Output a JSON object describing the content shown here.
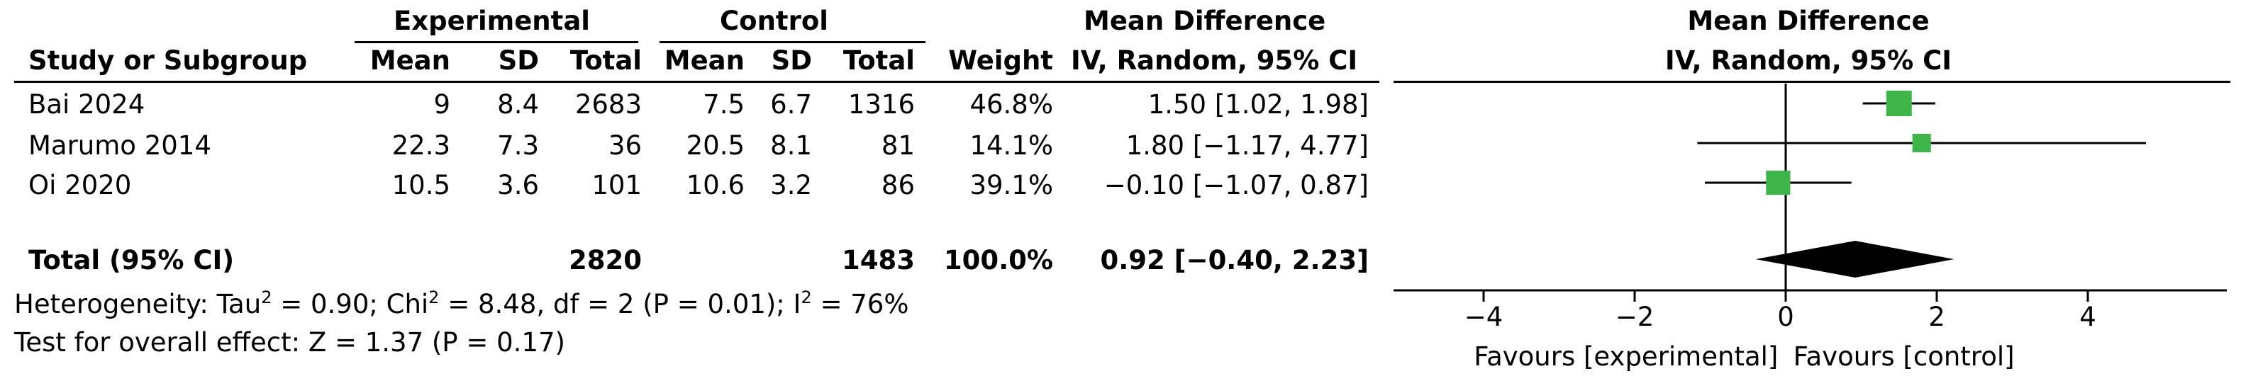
{
  "headers": {
    "experimental": "Experimental",
    "control": "Control",
    "md_top": "Mean Difference",
    "study": "Study or Subgroup",
    "mean": "Mean",
    "sd": "SD",
    "total": "Total",
    "weight": "Weight",
    "md_method": "IV, Random, 95% CI",
    "plot_top": "Mean Difference",
    "plot_method": "IV, Random, 95% CI"
  },
  "studies": [
    {
      "name": "Bai 2024",
      "e_mean": "9",
      "e_sd": "8.4",
      "e_total": "2683",
      "c_mean": "7.5",
      "c_sd": "6.7",
      "c_total": "1316",
      "weight": "46.8%",
      "ci": "1.50 [1.02, 1.98]"
    },
    {
      "name": "Marumo 2014",
      "e_mean": "22.3",
      "e_sd": "7.3",
      "e_total": "36",
      "c_mean": "20.5",
      "c_sd": "8.1",
      "c_total": "81",
      "weight": "14.1%",
      "ci": "1.80 [−1.17, 4.77]"
    },
    {
      "name": "Oi 2020",
      "e_mean": "10.5",
      "e_sd": "3.6",
      "e_total": "101",
      "c_mean": "10.6",
      "c_sd": "3.2",
      "c_total": "86",
      "weight": "39.1%",
      "ci": "−0.10 [−1.07, 0.87]"
    }
  ],
  "total": {
    "label": "Total (95% CI)",
    "e_total": "2820",
    "c_total": "1483",
    "weight": "100.0%",
    "ci": "0.92 [−0.40, 2.23]"
  },
  "heterogeneity": {
    "prefix": "Heterogeneity: Tau",
    "sup1": "2",
    "mid1": " = 0.90; Chi",
    "sup2": "2",
    "mid2": " = 8.48, df = 2 (P = 0.01); I",
    "sup3": "2",
    "suffix": " = 76%"
  },
  "overall_test": "Test for overall effect: Z = 1.37 (P = 0.17)",
  "colors": {
    "marker": "#3db549",
    "diamond": "#000000",
    "line": "#000000"
  },
  "chart_data": {
    "type": "forest",
    "xlim": [
      -5.5,
      5.5
    ],
    "ticks": [
      -4,
      -2,
      0,
      2,
      4
    ],
    "tick_labels": [
      "−4",
      "−2",
      "0",
      "2",
      "4"
    ],
    "xlabel_left": "Favours [experimental]",
    "xlabel_right": "Favours [control]",
    "series": [
      {
        "name": "Bai 2024",
        "md": 1.5,
        "lo": 1.02,
        "hi": 1.98,
        "weight": 46.8
      },
      {
        "name": "Marumo 2014",
        "md": 1.8,
        "lo": -1.17,
        "hi": 4.77,
        "weight": 14.1
      },
      {
        "name": "Oi 2020",
        "md": -0.1,
        "lo": -1.07,
        "hi": 0.87,
        "weight": 39.1
      }
    ],
    "pooled": {
      "md": 0.92,
      "lo": -0.4,
      "hi": 2.23
    }
  }
}
